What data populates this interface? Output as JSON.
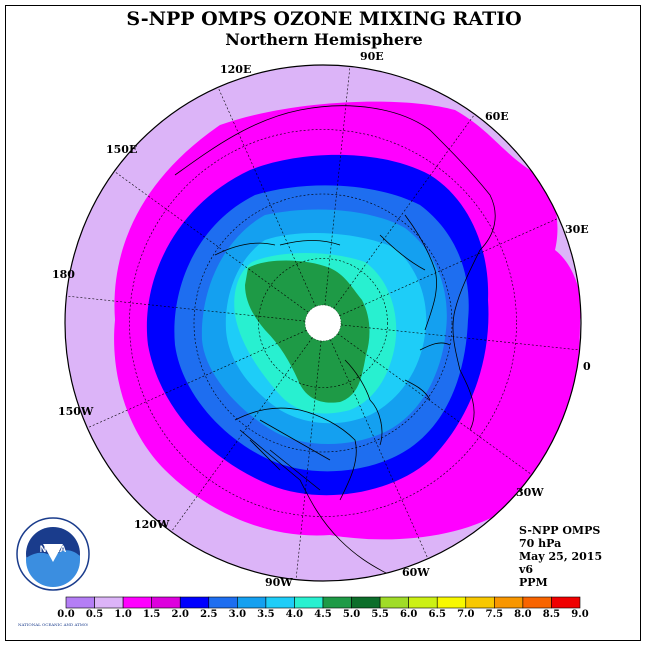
{
  "title": "S-NPP OMPS OZONE MIXING RATIO",
  "subtitle": "Northern Hemisphere",
  "longitude_labels": {
    "e90": "90E",
    "e60": "60E",
    "e30": "30E",
    "zero": "0",
    "w30": "30W",
    "w60": "60W",
    "w90": "90W",
    "w120": "120W",
    "w150": "150W",
    "d180": "180",
    "e150": "150E",
    "e120": "120E"
  },
  "info": {
    "instrument": "S-NPP OMPS",
    "level": "70 hPa",
    "date": "May 25, 2015",
    "version": "v6",
    "unit": "PPM"
  },
  "colorbar": {
    "ticks": [
      "0.0",
      "0.5",
      "1.0",
      "1.5",
      "2.0",
      "2.5",
      "3.0",
      "3.5",
      "4.0",
      "4.5",
      "5.0",
      "5.5",
      "6.0",
      "6.5",
      "7.0",
      "7.5",
      "8.0",
      "8.5",
      "9.0"
    ],
    "colors": [
      "#b47ef5",
      "#dcb4f8",
      "#ff00ff",
      "#dd00dd",
      "#0000ff",
      "#1e6ef0",
      "#14a0f0",
      "#1ecdf8",
      "#28f0d0",
      "#1e9a46",
      "#0c6e2a",
      "#a0dc28",
      "#ccf014",
      "#f8f800",
      "#f8c800",
      "#f89600",
      "#f86400",
      "#f00000",
      "#8c5a3c"
    ]
  },
  "map_colors": {
    "outer": "#dcb4f8",
    "ring1": "#ff00ff",
    "ring2": "#0000ff",
    "ring3": "#1e6ef0",
    "ring4": "#14a0f0",
    "ring5": "#1ecdf8",
    "ring6": "#28f0d0",
    "core": "#1e9a46"
  },
  "icons": {
    "logo": "noaa-logo-icon"
  },
  "logo": {
    "text": "NOAA",
    "ring_text": "NATIONAL OCEANIC AND ATMOSPHERIC ADMINISTRATION · U.S. DEPARTMENT OF COMMERCE"
  }
}
